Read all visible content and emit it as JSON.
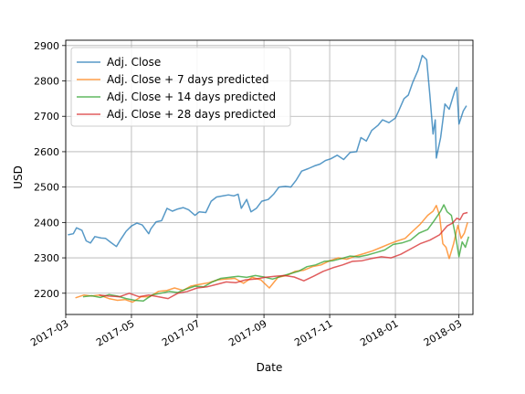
{
  "chart_data": {
    "type": "line",
    "xlabel": "Date",
    "ylabel": "USD",
    "xlim": [
      "2017-03-01",
      "2018-03-14"
    ],
    "ylim": [
      2140,
      2915
    ],
    "x_ticks": [
      "2017-03-01",
      "2017-05-01",
      "2017-07-01",
      "2017-09-01",
      "2017-11-01",
      "2018-01-01",
      "2018-03-01"
    ],
    "x_tick_labels": [
      "2017-03",
      "2017-05",
      "2017-07",
      "2017-09",
      "2017-11",
      "2018-01",
      "2018-03"
    ],
    "y_ticks": [
      2200,
      2300,
      2400,
      2500,
      2600,
      2700,
      2800,
      2900
    ],
    "grid": true,
    "legend_position": "top-left",
    "series": [
      {
        "name": "Adj. Close",
        "color": "#1f77b4",
        "points": [
          [
            "2017-03-03",
            2365
          ],
          [
            "2017-03-08",
            2368
          ],
          [
            "2017-03-11",
            2385
          ],
          [
            "2017-03-16",
            2378
          ],
          [
            "2017-03-20",
            2348
          ],
          [
            "2017-03-24",
            2342
          ],
          [
            "2017-03-28",
            2360
          ],
          [
            "2017-04-03",
            2356
          ],
          [
            "2017-04-07",
            2355
          ],
          [
            "2017-04-12",
            2343
          ],
          [
            "2017-04-17",
            2332
          ],
          [
            "2017-04-21",
            2352
          ],
          [
            "2017-04-26",
            2375
          ],
          [
            "2017-05-01",
            2390
          ],
          [
            "2017-05-06",
            2398
          ],
          [
            "2017-05-11",
            2393
          ],
          [
            "2017-05-17",
            2368
          ],
          [
            "2017-05-19",
            2382
          ],
          [
            "2017-05-24",
            2402
          ],
          [
            "2017-05-29",
            2405
          ],
          [
            "2017-06-03",
            2440
          ],
          [
            "2017-06-08",
            2432
          ],
          [
            "2017-06-13",
            2438
          ],
          [
            "2017-06-18",
            2442
          ],
          [
            "2017-06-23",
            2436
          ],
          [
            "2017-06-29",
            2420
          ],
          [
            "2017-07-03",
            2430
          ],
          [
            "2017-07-09",
            2428
          ],
          [
            "2017-07-14",
            2460
          ],
          [
            "2017-07-19",
            2472
          ],
          [
            "2017-07-25",
            2475
          ],
          [
            "2017-07-30",
            2478
          ],
          [
            "2017-08-04",
            2475
          ],
          [
            "2017-08-08",
            2480
          ],
          [
            "2017-08-11",
            2440
          ],
          [
            "2017-08-16",
            2465
          ],
          [
            "2017-08-20",
            2430
          ],
          [
            "2017-08-25",
            2440
          ],
          [
            "2017-08-30",
            2460
          ],
          [
            "2017-09-05",
            2465
          ],
          [
            "2017-09-10",
            2480
          ],
          [
            "2017-09-15",
            2500
          ],
          [
            "2017-09-21",
            2502
          ],
          [
            "2017-09-26",
            2500
          ],
          [
            "2017-10-01",
            2520
          ],
          [
            "2017-10-06",
            2545
          ],
          [
            "2017-10-12",
            2552
          ],
          [
            "2017-10-18",
            2560
          ],
          [
            "2017-10-23",
            2565
          ],
          [
            "2017-10-28",
            2575
          ],
          [
            "2017-11-02",
            2580
          ],
          [
            "2017-11-08",
            2590
          ],
          [
            "2017-11-14",
            2578
          ],
          [
            "2017-11-20",
            2598
          ],
          [
            "2017-11-26",
            2600
          ],
          [
            "2017-11-30",
            2640
          ],
          [
            "2017-12-05",
            2630
          ],
          [
            "2017-12-10",
            2660
          ],
          [
            "2017-12-16",
            2675
          ],
          [
            "2017-12-20",
            2690
          ],
          [
            "2017-12-26",
            2682
          ],
          [
            "2018-01-01",
            2695
          ],
          [
            "2018-01-04",
            2715
          ],
          [
            "2018-01-09",
            2750
          ],
          [
            "2018-01-13",
            2760
          ],
          [
            "2018-01-17",
            2795
          ],
          [
            "2018-01-22",
            2830
          ],
          [
            "2018-01-26",
            2872
          ],
          [
            "2018-01-30",
            2860
          ],
          [
            "2018-02-02",
            2760
          ],
          [
            "2018-02-05",
            2650
          ],
          [
            "2018-02-07",
            2690
          ],
          [
            "2018-02-08",
            2582
          ],
          [
            "2018-02-12",
            2640
          ],
          [
            "2018-02-16",
            2735
          ],
          [
            "2018-02-20",
            2720
          ],
          [
            "2018-02-25",
            2770
          ],
          [
            "2018-02-27",
            2782
          ],
          [
            "2018-03-01",
            2678
          ],
          [
            "2018-03-05",
            2715
          ],
          [
            "2018-03-08",
            2730
          ]
        ]
      },
      {
        "name": "Adj. Close + 7 days predicted",
        "color": "#ff7f0e",
        "points": [
          [
            "2017-03-10",
            2187
          ],
          [
            "2017-03-18",
            2195
          ],
          [
            "2017-03-25",
            2192
          ],
          [
            "2017-04-01",
            2195
          ],
          [
            "2017-04-10",
            2185
          ],
          [
            "2017-04-18",
            2180
          ],
          [
            "2017-04-25",
            2182
          ],
          [
            "2017-05-02",
            2175
          ],
          [
            "2017-05-10",
            2190
          ],
          [
            "2017-05-18",
            2190
          ],
          [
            "2017-05-26",
            2205
          ],
          [
            "2017-06-03",
            2208
          ],
          [
            "2017-06-10",
            2215
          ],
          [
            "2017-06-18",
            2208
          ],
          [
            "2017-06-25",
            2220
          ],
          [
            "2017-07-03",
            2225
          ],
          [
            "2017-07-12",
            2230
          ],
          [
            "2017-07-20",
            2238
          ],
          [
            "2017-07-28",
            2240
          ],
          [
            "2017-08-05",
            2242
          ],
          [
            "2017-08-13",
            2228
          ],
          [
            "2017-08-21",
            2245
          ],
          [
            "2017-08-29",
            2238
          ],
          [
            "2017-09-06",
            2215
          ],
          [
            "2017-09-14",
            2245
          ],
          [
            "2017-09-22",
            2250
          ],
          [
            "2017-09-30",
            2262
          ],
          [
            "2017-10-08",
            2265
          ],
          [
            "2017-10-16",
            2275
          ],
          [
            "2017-10-24",
            2280
          ],
          [
            "2017-11-01",
            2292
          ],
          [
            "2017-11-09",
            2300
          ],
          [
            "2017-11-17",
            2296
          ],
          [
            "2017-11-25",
            2305
          ],
          [
            "2017-12-03",
            2312
          ],
          [
            "2017-12-11",
            2320
          ],
          [
            "2017-12-19",
            2330
          ],
          [
            "2017-12-27",
            2340
          ],
          [
            "2018-01-03",
            2348
          ],
          [
            "2018-01-10",
            2355
          ],
          [
            "2018-01-17",
            2375
          ],
          [
            "2018-01-24",
            2395
          ],
          [
            "2018-01-31",
            2420
          ],
          [
            "2018-02-05",
            2432
          ],
          [
            "2018-02-08",
            2448
          ],
          [
            "2018-02-11",
            2420
          ],
          [
            "2018-02-14",
            2340
          ],
          [
            "2018-02-17",
            2330
          ],
          [
            "2018-02-20",
            2298
          ],
          [
            "2018-02-24",
            2340
          ],
          [
            "2018-02-28",
            2392
          ],
          [
            "2018-03-03",
            2355
          ],
          [
            "2018-03-06",
            2370
          ],
          [
            "2018-03-09",
            2400
          ]
        ]
      },
      {
        "name": "Adj. Close + 14 days predicted",
        "color": "#2ca02c",
        "points": [
          [
            "2017-03-17",
            2190
          ],
          [
            "2017-03-25",
            2193
          ],
          [
            "2017-04-02",
            2188
          ],
          [
            "2017-04-10",
            2196
          ],
          [
            "2017-04-18",
            2192
          ],
          [
            "2017-04-26",
            2185
          ],
          [
            "2017-05-04",
            2180
          ],
          [
            "2017-05-12",
            2178
          ],
          [
            "2017-05-20",
            2195
          ],
          [
            "2017-05-28",
            2200
          ],
          [
            "2017-06-05",
            2205
          ],
          [
            "2017-06-13",
            2202
          ],
          [
            "2017-06-21",
            2212
          ],
          [
            "2017-06-29",
            2220
          ],
          [
            "2017-07-07",
            2218
          ],
          [
            "2017-07-15",
            2232
          ],
          [
            "2017-07-23",
            2242
          ],
          [
            "2017-07-31",
            2245
          ],
          [
            "2017-08-08",
            2248
          ],
          [
            "2017-08-16",
            2245
          ],
          [
            "2017-08-24",
            2250
          ],
          [
            "2017-09-01",
            2246
          ],
          [
            "2017-09-09",
            2240
          ],
          [
            "2017-09-17",
            2248
          ],
          [
            "2017-09-25",
            2255
          ],
          [
            "2017-10-03",
            2262
          ],
          [
            "2017-10-11",
            2275
          ],
          [
            "2017-10-19",
            2280
          ],
          [
            "2017-10-27",
            2290
          ],
          [
            "2017-11-04",
            2292
          ],
          [
            "2017-11-12",
            2298
          ],
          [
            "2017-11-20",
            2305
          ],
          [
            "2017-11-28",
            2303
          ],
          [
            "2017-12-06",
            2308
          ],
          [
            "2017-12-14",
            2315
          ],
          [
            "2017-12-22",
            2322
          ],
          [
            "2017-12-30",
            2338
          ],
          [
            "2018-01-07",
            2342
          ],
          [
            "2018-01-15",
            2350
          ],
          [
            "2018-01-23",
            2370
          ],
          [
            "2018-01-31",
            2380
          ],
          [
            "2018-02-06",
            2405
          ],
          [
            "2018-02-12",
            2432
          ],
          [
            "2018-02-15",
            2450
          ],
          [
            "2018-02-18",
            2430
          ],
          [
            "2018-02-22",
            2420
          ],
          [
            "2018-02-26",
            2360
          ],
          [
            "2018-03-01",
            2303
          ],
          [
            "2018-03-04",
            2345
          ],
          [
            "2018-03-07",
            2330
          ],
          [
            "2018-03-10",
            2360
          ]
        ]
      },
      {
        "name": "Adj. Close + 28 days predicted",
        "color": "#d62728",
        "points": [
          [
            "2017-04-01",
            2195
          ],
          [
            "2017-04-10",
            2192
          ],
          [
            "2017-04-20",
            2190
          ],
          [
            "2017-04-29",
            2200
          ],
          [
            "2017-05-08",
            2190
          ],
          [
            "2017-05-17",
            2195
          ],
          [
            "2017-05-26",
            2190
          ],
          [
            "2017-06-04",
            2185
          ],
          [
            "2017-06-13",
            2200
          ],
          [
            "2017-06-22",
            2205
          ],
          [
            "2017-07-01",
            2215
          ],
          [
            "2017-07-10",
            2218
          ],
          [
            "2017-07-19",
            2225
          ],
          [
            "2017-07-28",
            2232
          ],
          [
            "2017-08-06",
            2230
          ],
          [
            "2017-08-15",
            2238
          ],
          [
            "2017-08-24",
            2240
          ],
          [
            "2017-09-02",
            2245
          ],
          [
            "2017-09-11",
            2248
          ],
          [
            "2017-09-20",
            2250
          ],
          [
            "2017-09-29",
            2246
          ],
          [
            "2017-10-08",
            2235
          ],
          [
            "2017-10-17",
            2248
          ],
          [
            "2017-10-26",
            2262
          ],
          [
            "2017-11-04",
            2272
          ],
          [
            "2017-11-13",
            2280
          ],
          [
            "2017-11-22",
            2290
          ],
          [
            "2017-12-01",
            2292
          ],
          [
            "2017-12-10",
            2298
          ],
          [
            "2017-12-19",
            2303
          ],
          [
            "2017-12-28",
            2300
          ],
          [
            "2018-01-06",
            2310
          ],
          [
            "2018-01-15",
            2325
          ],
          [
            "2018-01-24",
            2340
          ],
          [
            "2018-02-02",
            2350
          ],
          [
            "2018-02-11",
            2365
          ],
          [
            "2018-02-18",
            2390
          ],
          [
            "2018-02-23",
            2398
          ],
          [
            "2018-02-27",
            2412
          ],
          [
            "2018-03-02",
            2408
          ],
          [
            "2018-03-05",
            2425
          ],
          [
            "2018-03-09",
            2428
          ]
        ]
      }
    ]
  }
}
